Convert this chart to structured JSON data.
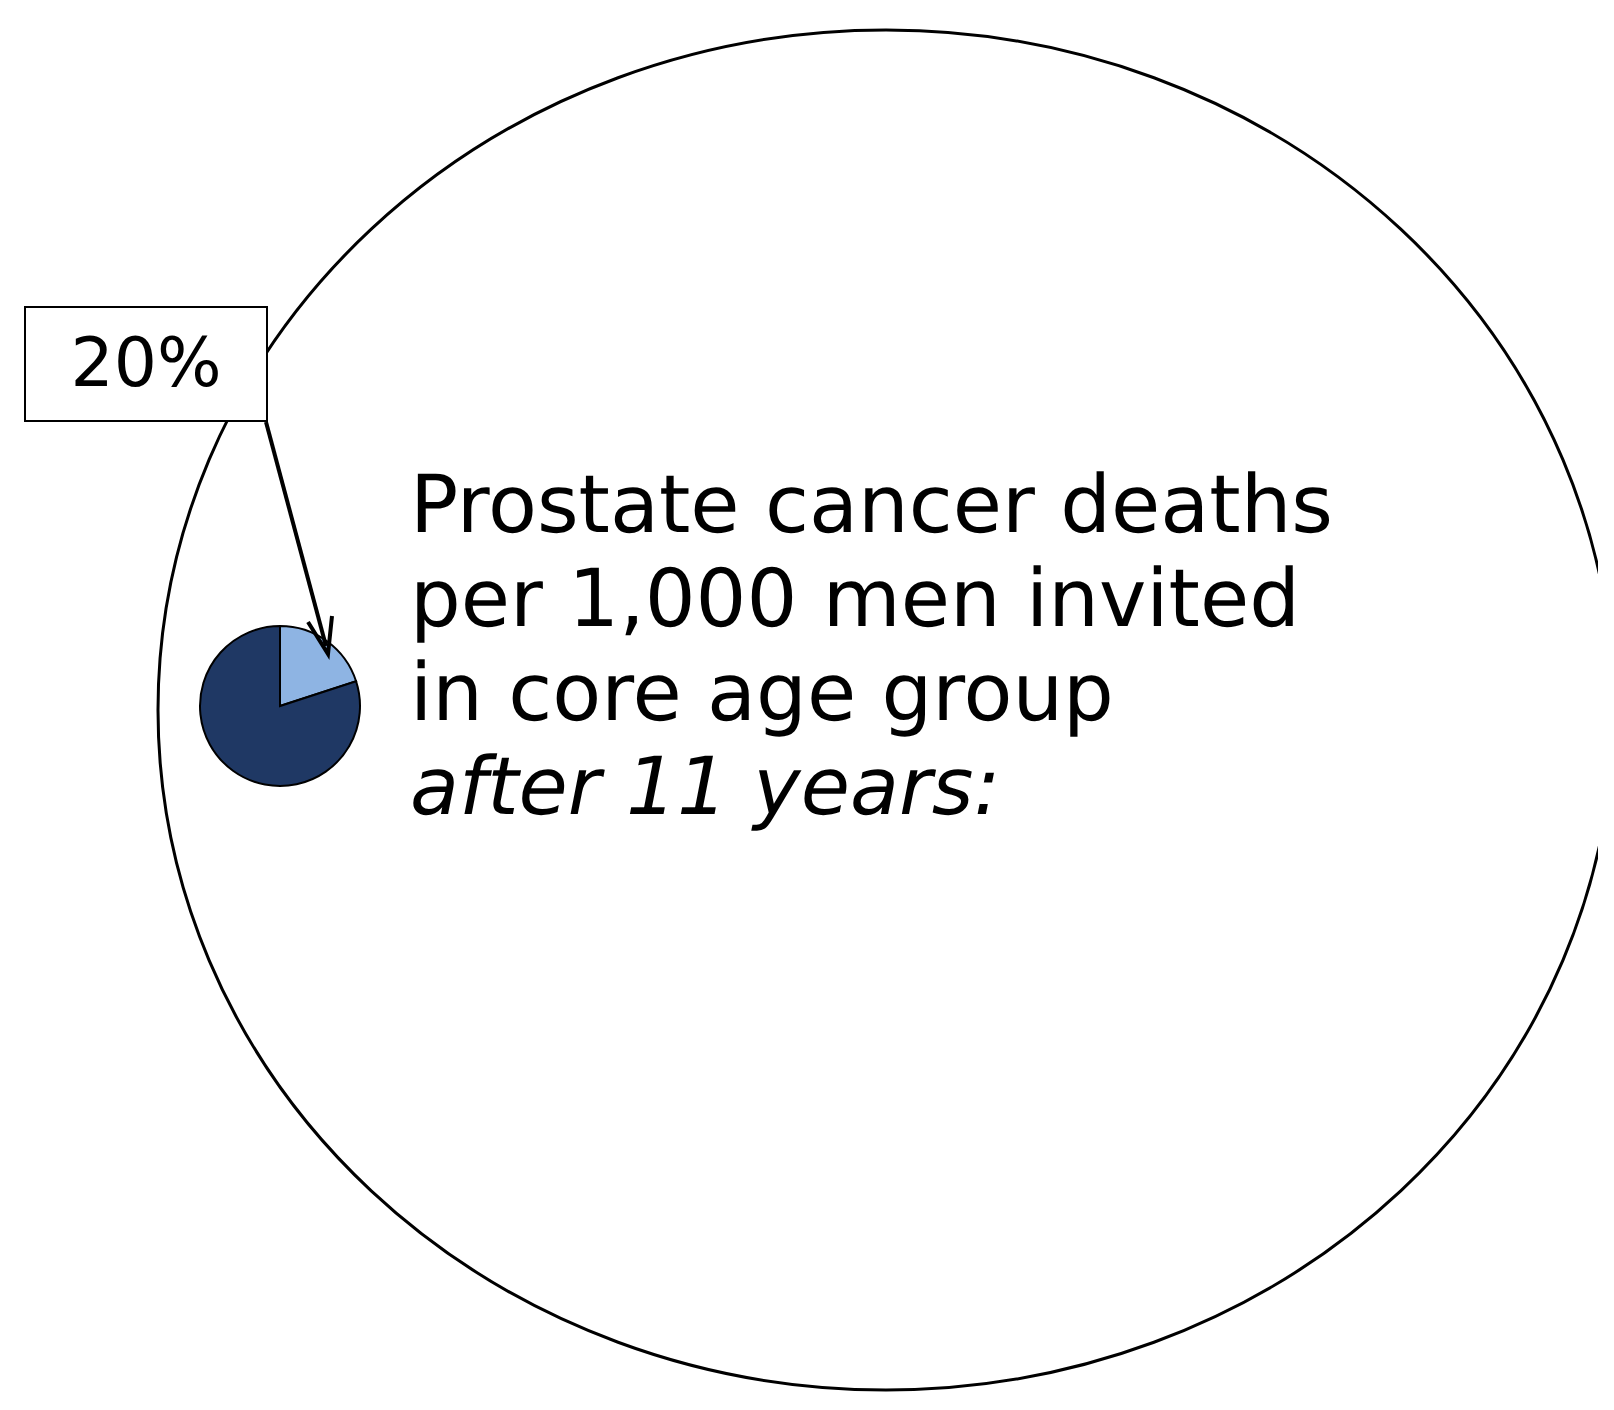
{
  "chart_data": {
    "type": "pie",
    "title": "Prostate cancer deaths per 1,000 men invited in core age group",
    "subtitle": "after 11 years:",
    "categories": [
      null,
      null
    ],
    "values": [
      20,
      80
    ],
    "colors": [
      "#8eb4e3",
      "#1f3864"
    ],
    "value_labels": [
      "20%",
      null
    ]
  }
}
